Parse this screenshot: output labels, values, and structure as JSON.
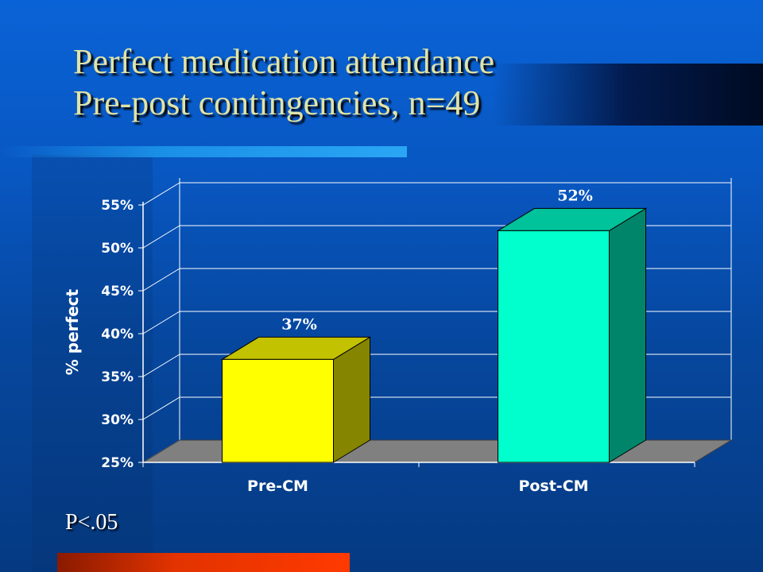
{
  "slide": {
    "title_line1": "Perfect medication attendance",
    "title_line2": "Pre-post contingencies, n=49",
    "note": "P<.05"
  },
  "colors": {
    "background": "#0857c2",
    "title_text": "#dfe3a8",
    "bar_pre_front": "#ffff00",
    "bar_post_front": "#00ffcc",
    "floor": "#808080"
  },
  "chart_data": {
    "type": "bar",
    "categories": [
      "Pre-CM",
      "Post-CM"
    ],
    "values": [
      37,
      52
    ],
    "value_labels": [
      "37%",
      "52%"
    ],
    "ylabel": "% perfect",
    "xlabel": "",
    "ylim": [
      25,
      55
    ],
    "yticks": [
      25,
      30,
      35,
      40,
      45,
      50,
      55
    ],
    "ytick_labels": [
      "25%",
      "30%",
      "35%",
      "40%",
      "45%",
      "50%",
      "55%"
    ],
    "grid": true,
    "style": "3d",
    "bar_colors": [
      "#ffff00",
      "#00ffcc"
    ]
  }
}
